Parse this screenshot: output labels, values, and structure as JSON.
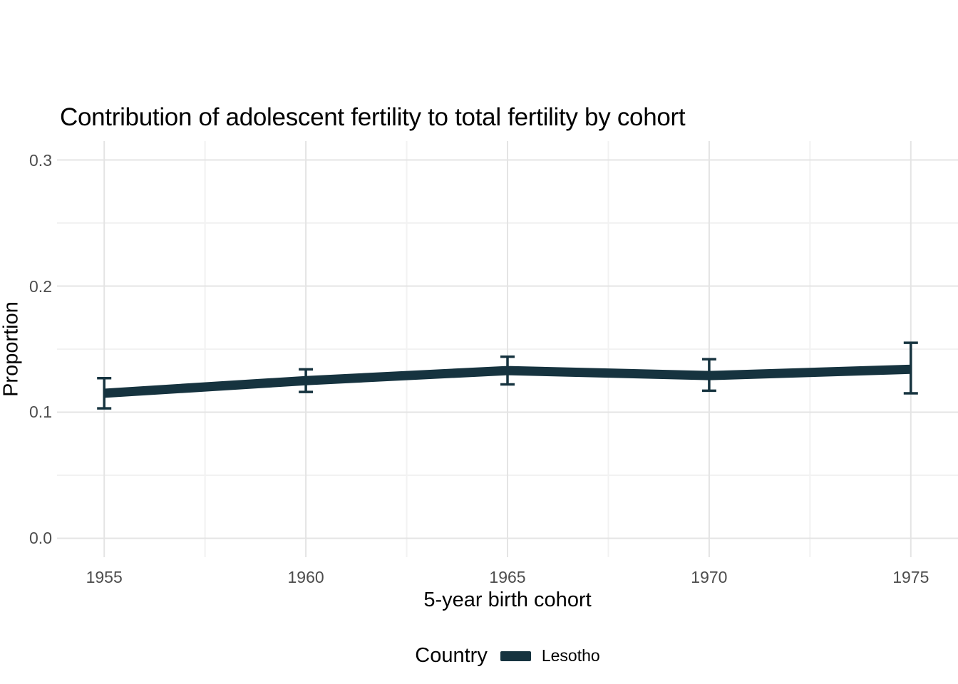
{
  "title": "Contribution of adolescent fertility to total fertility by cohort",
  "chart_data": {
    "type": "line",
    "title": "Contribution of adolescent fertility to total fertility by cohort",
    "xlabel": "5-year birth cohort",
    "ylabel": "Proportion",
    "x": [
      1955,
      1960,
      1965,
      1970,
      1975
    ],
    "x_tick_labels": [
      "1955",
      "1960",
      "1965",
      "1970",
      "1975"
    ],
    "y_ticks": [
      0.0,
      0.1,
      0.2,
      0.3
    ],
    "y_tick_labels": [
      "0.0",
      "0.1",
      "0.2",
      "0.3"
    ],
    "xlim": [
      1953.83,
      1976.17
    ],
    "ylim": [
      -0.015,
      0.315
    ],
    "grid": {
      "major_color": "#e4e4e4",
      "minor_color": "#f2f2f2",
      "minor": "midpoints"
    },
    "series": [
      {
        "name": "Lesotho",
        "color": "#16333f",
        "values": [
          0.115,
          0.125,
          0.133,
          0.129,
          0.134
        ],
        "ci_low": [
          0.103,
          0.116,
          0.122,
          0.117,
          0.115
        ],
        "ci_high": [
          0.127,
          0.134,
          0.144,
          0.142,
          0.155
        ]
      }
    ],
    "legend": {
      "position": "bottom",
      "title": "Country",
      "entries": [
        {
          "label": "Lesotho",
          "color": "#16333f"
        }
      ]
    },
    "colors": {
      "tick_text": "#4d4d4d",
      "text": "#000000"
    }
  }
}
